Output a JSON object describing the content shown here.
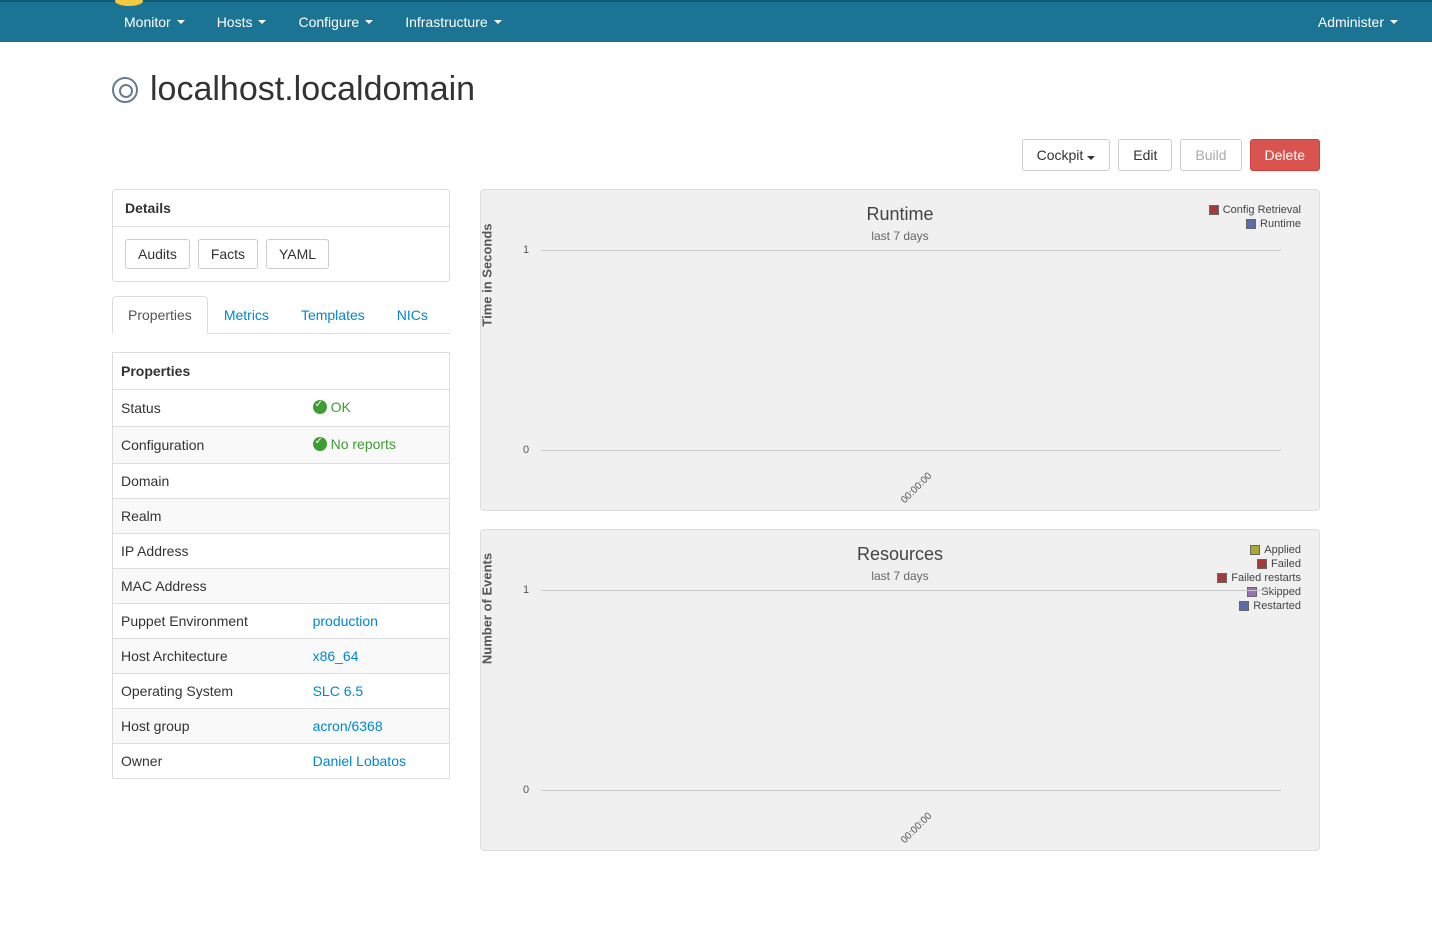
{
  "nav": {
    "items": [
      "Monitor",
      "Hosts",
      "Configure",
      "Infrastructure"
    ],
    "right": "Administer"
  },
  "page": {
    "title": "localhost.localdomain"
  },
  "actions": {
    "cockpit": "Cockpit",
    "edit": "Edit",
    "build": "Build",
    "delete": "Delete"
  },
  "details": {
    "heading": "Details",
    "buttons": {
      "audits": "Audits",
      "facts": "Facts",
      "yaml": "YAML"
    }
  },
  "tabs": [
    "Properties",
    "Metrics",
    "Templates",
    "NICs"
  ],
  "properties": {
    "heading": "Properties",
    "rows": [
      {
        "key": "Status",
        "value": "OK",
        "status": true
      },
      {
        "key": "Configuration",
        "value": "No reports",
        "status": true
      },
      {
        "key": "Domain",
        "value": ""
      },
      {
        "key": "Realm",
        "value": ""
      },
      {
        "key": "IP Address",
        "value": ""
      },
      {
        "key": "MAC Address",
        "value": ""
      },
      {
        "key": "Puppet Environment",
        "value": "production",
        "link": true
      },
      {
        "key": "Host Architecture",
        "value": "x86_64",
        "link": true
      },
      {
        "key": "Operating System",
        "value": "SLC 6.5",
        "link": true
      },
      {
        "key": "Host group",
        "value": "acron/6368",
        "link": true
      },
      {
        "key": "Owner",
        "value": "Daniel Lobatos",
        "link": true
      }
    ]
  },
  "charts": {
    "runtime": {
      "title": "Runtime",
      "subtitle": "last 7 days",
      "ylabel": "Time in Seconds",
      "yticks": [
        {
          "label": "1",
          "pos": 0
        },
        {
          "label": "0",
          "pos": 100
        }
      ],
      "xtick": "00:00:00",
      "legend": [
        {
          "label": "Config Retrieval",
          "color": "#a23b3b"
        },
        {
          "label": "Runtime",
          "color": "#5b6da8"
        }
      ],
      "grid_color": "#c8c8c8",
      "background_color": "#f0f0f0"
    },
    "resources": {
      "title": "Resources",
      "subtitle": "last 7 days",
      "ylabel": "Number of Events",
      "yticks": [
        {
          "label": "1",
          "pos": 0
        },
        {
          "label": "0",
          "pos": 100
        }
      ],
      "xtick": "00:00:00",
      "legend": [
        {
          "label": "Applied",
          "color": "#a8a832"
        },
        {
          "label": "Failed",
          "color": "#a23b3b"
        },
        {
          "label": "Failed restarts",
          "color": "#a23b3b"
        },
        {
          "label": "Skipped",
          "color": "#9b6fb8"
        },
        {
          "label": "Restarted",
          "color": "#5b6da8"
        }
      ],
      "grid_color": "#c8c8c8",
      "background_color": "#f0f0f0"
    }
  }
}
